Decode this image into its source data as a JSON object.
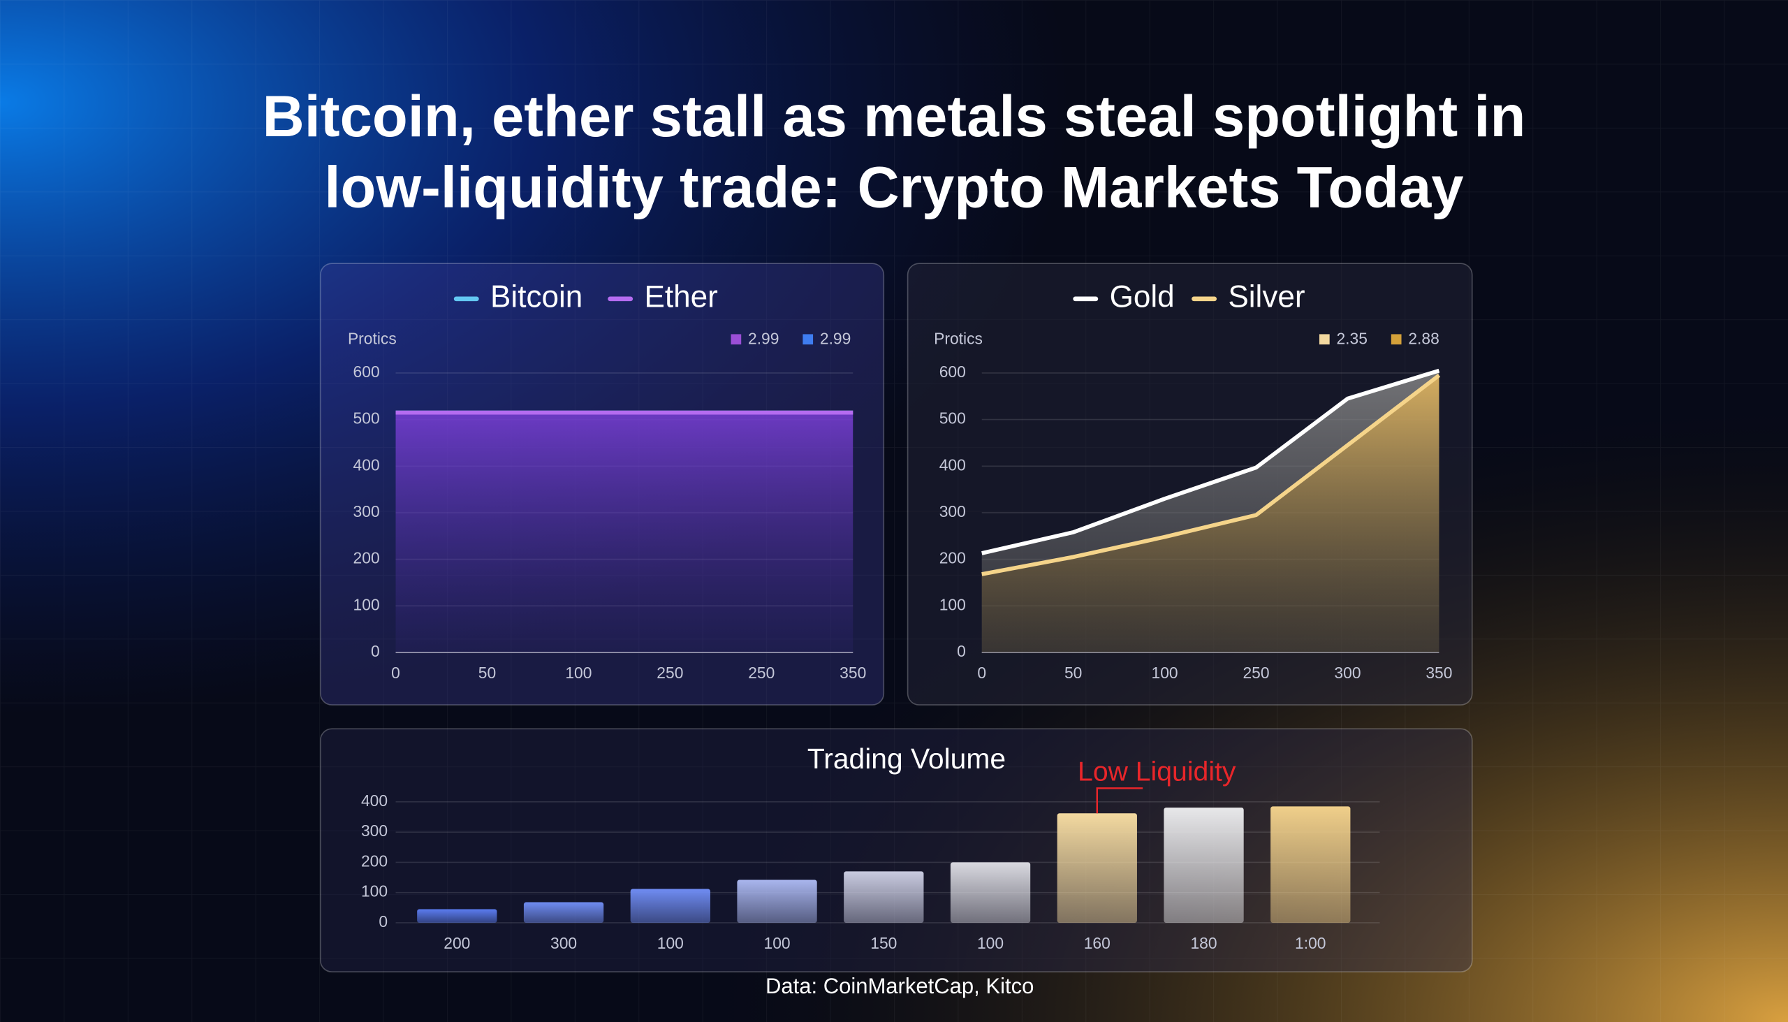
{
  "title": [
    "Bitcoin, ether stall as metals steal spotlight in",
    "low-liquidity trade: Crypto Markets Today"
  ],
  "source": "Data: CoinMarketCap, Kitco",
  "chart_data": [
    {
      "type": "line",
      "area": true,
      "y_label": "Protics",
      "categories": [
        "0",
        "50",
        "100",
        "250",
        "250",
        "350"
      ],
      "series": [
        {
          "name": "Bitcoin",
          "color": "#63c7f2",
          "values": [
            515,
            515,
            515,
            515,
            515,
            515
          ]
        },
        {
          "name": "Ether",
          "color": "#b56cf0",
          "values": [
            515,
            515,
            515,
            515,
            515,
            515
          ]
        }
      ],
      "markers": [
        {
          "label": "2.99",
          "color": "#9b4fd6"
        },
        {
          "label": "2.99",
          "color": "#3f7df0"
        }
      ],
      "ylim": [
        0,
        600
      ],
      "yticks": [
        0,
        100,
        200,
        300,
        400,
        500,
        600
      ],
      "grid": true
    },
    {
      "type": "line",
      "area": true,
      "y_label": "Protics",
      "categories": [
        "0",
        "50",
        "100",
        "250",
        "300",
        "350"
      ],
      "series": [
        {
          "name": "Gold",
          "color": "#ffffff",
          "values": [
            213,
            258,
            330,
            397,
            545,
            605
          ]
        },
        {
          "name": "Silver",
          "color": "#f5d48a",
          "values": [
            168,
            205,
            248,
            295,
            445,
            595
          ]
        }
      ],
      "markers": [
        {
          "label": "2.35",
          "color": "#f3d9a0"
        },
        {
          "label": "2.88",
          "color": "#d4a13a"
        }
      ],
      "ylim": [
        0,
        600
      ],
      "yticks": [
        0,
        100,
        200,
        300,
        400,
        500,
        600
      ],
      "grid": true
    },
    {
      "type": "bar",
      "title": "Trading Volume",
      "categories": [
        "200",
        "300",
        "100",
        "100",
        "150",
        "100",
        "160",
        "180",
        "1:00"
      ],
      "values": [
        45,
        68,
        112,
        142,
        170,
        200,
        362,
        381,
        385
      ],
      "colors": [
        "#5b7cf0",
        "#6f8cf2",
        "#6f8cf2",
        "#a9b6ee",
        "#c9cbe0",
        "#d9d9e0",
        "#f3d9a0",
        "#e8e8ea",
        "#f0cf8a"
      ],
      "annotation": {
        "text": "Low Liquidity",
        "index": 6,
        "color": "#e8262a"
      },
      "ylim": [
        0,
        400
      ],
      "yticks": [
        0,
        100,
        200,
        300,
        400
      ],
      "grid": true
    }
  ]
}
